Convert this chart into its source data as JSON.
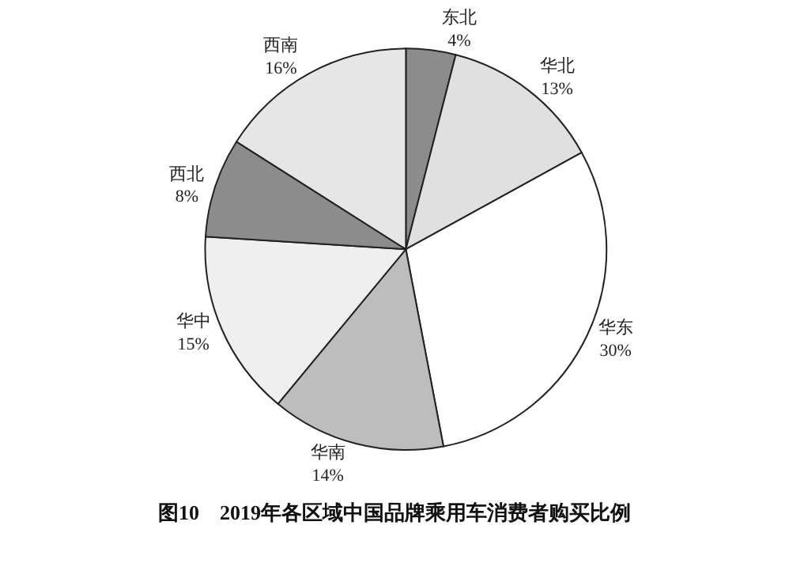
{
  "chart_data": {
    "type": "pie",
    "title": "图10　2019年各区域中国品牌乘用车消费者购买比例",
    "categories": [
      "东北",
      "华北",
      "华东",
      "华南",
      "华中",
      "西北",
      "西南"
    ],
    "values": [
      4,
      13,
      30,
      14,
      15,
      8,
      16
    ],
    "value_labels": [
      "4%",
      "13%",
      "30%",
      "14%",
      "15%",
      "8%",
      "16%"
    ],
    "colors": [
      "#8c8c8c",
      "#e0e0e0",
      "#ffffff",
      "#bdbdbd",
      "#efefef",
      "#8c8c8c",
      "#e6e6e6"
    ],
    "legend": false
  }
}
